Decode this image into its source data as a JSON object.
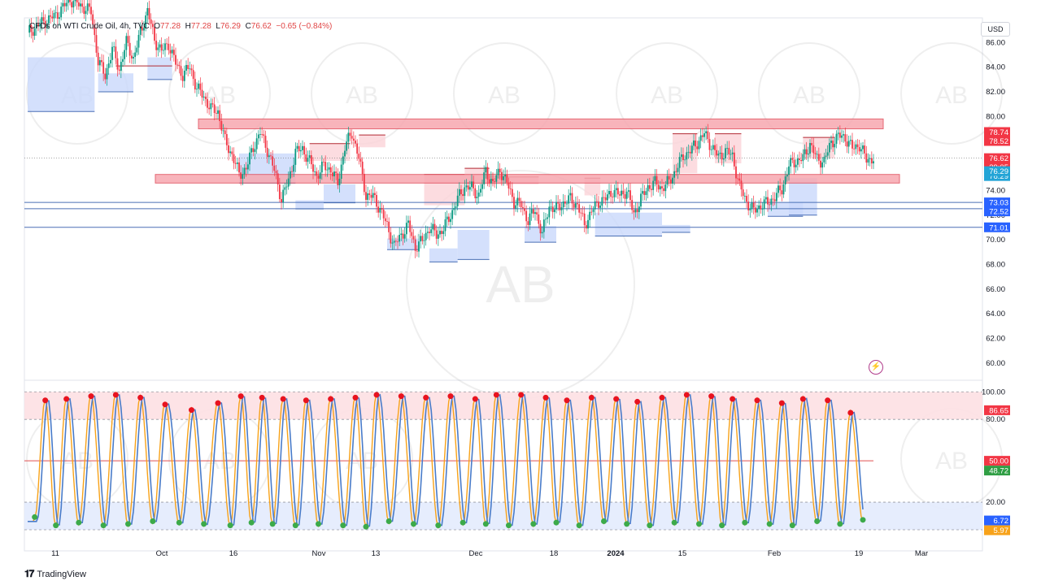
{
  "header": {
    "symbol": "CFDs on WTI Crude Oil, 4h, TVC",
    "o_label": "O",
    "o": "77.28",
    "h_label": "H",
    "h": "77.28",
    "l_label": "L",
    "l": "76.29",
    "c_label": "C",
    "c": "76.62",
    "change": "−0.65 (−0.84%)"
  },
  "currency": "USD",
  "brand": "TradingView",
  "watermark": "AB",
  "colors": {
    "up": "#089981",
    "down": "#f23645",
    "zone_red": "#f7a8b0",
    "zone_red_stroke": "#e0505e",
    "box_red": "#fbd3d8",
    "box_blue": "#c9d8fb",
    "line_blue": "#2962ff",
    "line_dark_blue": "#4a6fb5",
    "osc_fast": "#f7a21a",
    "osc_slow": "#4a7cc9",
    "dot_red": "#e8131f",
    "dot_green": "#3caa4a"
  },
  "chart_data": [
    {
      "type": "candlestick",
      "title": "CFDs on WTI Crude Oil, 4h, TVC",
      "y_ticks": [
        86.0,
        84.0,
        82.0,
        80.0,
        78.0,
        76.0,
        74.0,
        72.0,
        70.0,
        68.0,
        66.0,
        64.0,
        62.0,
        60.0
      ],
      "ylim": [
        59.0,
        88.0
      ],
      "x_ticks": [
        "11",
        "Oct",
        "16",
        "Nov",
        "13",
        "Dec",
        "18",
        "2024",
        "15",
        "Feb",
        "19",
        "Mar"
      ],
      "bold_x_tick": "2024",
      "price_labels": [
        {
          "value": 78.74,
          "text": "78.74",
          "style": "red"
        },
        {
          "value": 78.52,
          "text": "78.52",
          "style": "red"
        },
        {
          "value": 76.62,
          "text": "76.62",
          "style": "red"
        },
        {
          "value": 76.62,
          "text": "39:05",
          "style": "red",
          "offset": 1
        },
        {
          "value": 76.29,
          "text": "76.29",
          "style": "cyan"
        },
        {
          "value": 76.29,
          "text": "76.29",
          "style": "cyan",
          "offset": 1
        },
        {
          "value": 73.03,
          "text": "73.03",
          "style": "blue"
        },
        {
          "value": 72.52,
          "text": "72.52",
          "style": "blue"
        },
        {
          "value": 71.01,
          "text": "71.01",
          "style": "blue"
        }
      ],
      "resistance_zones": [
        {
          "top": 79.8,
          "bottom": 79.0
        },
        {
          "top": 75.3,
          "bottom": 74.6
        }
      ],
      "horizontal_lines": [
        73.03,
        72.52,
        71.01
      ],
      "last_price": 76.62,
      "price_path": [
        [
          0,
          86.8
        ],
        [
          8,
          87.6
        ],
        [
          16,
          88.2
        ],
        [
          24,
          89.5
        ],
        [
          30,
          89.0
        ],
        [
          36,
          88.5
        ],
        [
          40,
          84.5
        ],
        [
          44,
          83.3
        ],
        [
          48,
          85.5
        ],
        [
          52,
          83.8
        ],
        [
          56,
          86.0
        ],
        [
          60,
          84.7
        ],
        [
          64,
          86.8
        ],
        [
          68,
          88.6
        ],
        [
          72,
          86.2
        ],
        [
          76,
          85.3
        ],
        [
          80,
          85.9
        ],
        [
          84,
          84.3
        ],
        [
          88,
          83.4
        ],
        [
          92,
          84.0
        ],
        [
          96,
          82.3
        ],
        [
          100,
          81.6
        ],
        [
          104,
          80.6
        ],
        [
          108,
          80.4
        ],
        [
          112,
          78.0
        ],
        [
          116,
          76.9
        ],
        [
          120,
          75.3
        ],
        [
          124,
          75.8
        ],
        [
          128,
          77.5
        ],
        [
          132,
          78.7
        ],
        [
          136,
          77.3
        ],
        [
          140,
          75.6
        ],
        [
          144,
          73.3
        ],
        [
          148,
          74.8
        ],
        [
          152,
          77.1
        ],
        [
          156,
          77.4
        ],
        [
          160,
          76.3
        ],
        [
          164,
          75.2
        ],
        [
          168,
          76.0
        ],
        [
          172,
          75.7
        ],
        [
          176,
          74.6
        ],
        [
          180,
          77.5
        ],
        [
          184,
          78.7
        ],
        [
          188,
          76.6
        ],
        [
          192,
          73.6
        ],
        [
          196,
          73.5
        ],
        [
          200,
          72.5
        ],
        [
          204,
          71.1
        ],
        [
          208,
          69.5
        ],
        [
          212,
          70.4
        ],
        [
          216,
          71.2
        ],
        [
          220,
          69.4
        ],
        [
          224,
          69.9
        ],
        [
          228,
          71.0
        ],
        [
          232,
          70.4
        ],
        [
          236,
          70.9
        ],
        [
          240,
          72.0
        ],
        [
          244,
          73.3
        ],
        [
          248,
          74.3
        ],
        [
          252,
          74.2
        ],
        [
          256,
          73.6
        ],
        [
          260,
          75.6
        ],
        [
          264,
          74.5
        ],
        [
          268,
          75.7
        ],
        [
          272,
          74.6
        ],
        [
          276,
          73.1
        ],
        [
          280,
          72.8
        ],
        [
          284,
          71.6
        ],
        [
          288,
          72.4
        ],
        [
          292,
          70.5
        ],
        [
          296,
          72.7
        ],
        [
          300,
          72.5
        ],
        [
          304,
          73.0
        ],
        [
          308,
          73.3
        ],
        [
          312,
          72.8
        ],
        [
          316,
          71.2
        ],
        [
          320,
          72.3
        ],
        [
          324,
          73.1
        ],
        [
          328,
          73.3
        ],
        [
          332,
          74.0
        ],
        [
          336,
          73.6
        ],
        [
          340,
          74.0
        ],
        [
          344,
          72.1
        ],
        [
          348,
          73.3
        ],
        [
          352,
          74.3
        ],
        [
          356,
          74.6
        ],
        [
          360,
          74.2
        ],
        [
          364,
          74.7
        ],
        [
          368,
          75.7
        ],
        [
          372,
          76.8
        ],
        [
          376,
          77.2
        ],
        [
          380,
          77.9
        ],
        [
          384,
          78.6
        ],
        [
          388,
          77.6
        ],
        [
          392,
          76.7
        ],
        [
          396,
          77.2
        ],
        [
          400,
          76.8
        ],
        [
          404,
          74.3
        ],
        [
          408,
          73.1
        ],
        [
          412,
          72.3
        ],
        [
          416,
          72.8
        ],
        [
          420,
          73.0
        ],
        [
          424,
          73.5
        ],
        [
          428,
          74.1
        ],
        [
          432,
          76.0
        ],
        [
          436,
          76.4
        ],
        [
          440,
          76.6
        ],
        [
          444,
          77.8
        ],
        [
          448,
          76.5
        ],
        [
          452,
          76.4
        ],
        [
          456,
          77.9
        ],
        [
          460,
          78.4
        ],
        [
          464,
          78.3
        ],
        [
          468,
          77.4
        ],
        [
          472,
          77.7
        ],
        [
          476,
          76.5
        ],
        [
          480,
          76.62
        ]
      ],
      "red_boxes": [
        [
          82,
          50,
          84.1,
          83.0
        ],
        [
          160,
          183,
          77.8,
          76.4
        ],
        [
          188,
          203,
          78.5,
          77.5
        ],
        [
          225,
          248,
          75.3,
          72.8
        ],
        [
          248,
          262,
          75.8,
          74.5
        ],
        [
          262,
          290,
          75.1,
          74.5
        ],
        [
          316,
          325,
          75.0,
          73.6
        ],
        [
          366,
          380,
          78.6,
          75.4
        ],
        [
          390,
          405,
          78.6,
          76.2
        ],
        [
          440,
          458,
          78.3,
          76.6
        ]
      ],
      "blue_boxes": [
        [
          0,
          38,
          84.8,
          80.4
        ],
        [
          40,
          60,
          83.5,
          82.0
        ],
        [
          68,
          82,
          84.8,
          83.0
        ],
        [
          120,
          152,
          77.0,
          74.6
        ],
        [
          152,
          168,
          73.2,
          72.5
        ],
        [
          168,
          186,
          74.5,
          73.0
        ],
        [
          204,
          222,
          70.1,
          69.2
        ],
        [
          228,
          244,
          69.3,
          68.2
        ],
        [
          244,
          262,
          70.8,
          68.4
        ],
        [
          282,
          300,
          71.1,
          69.8
        ],
        [
          322,
          360,
          72.2,
          70.3
        ],
        [
          360,
          376,
          71.2,
          70.6
        ],
        [
          420,
          440,
          73.0,
          71.9
        ],
        [
          432,
          448,
          75.0,
          72.0
        ]
      ]
    },
    {
      "type": "line",
      "title": "Stochastic RSI",
      "y_ticks": [
        100.0,
        80.0,
        50.0,
        20.0,
        0.0
      ],
      "ylim": [
        0,
        100
      ],
      "overbought": 80,
      "oversold": 20,
      "midline": 50,
      "series": [
        {
          "name": "",
          "color": "#f7a21a"
        },
        {
          "name": "",
          "color": "#4a7cc9"
        }
      ],
      "value_labels": [
        {
          "value": 86.65,
          "text": "86.65",
          "style": "red"
        },
        {
          "value": 50.0,
          "text": "50.00",
          "style": "red"
        },
        {
          "value": 48.72,
          "text": "48.72",
          "style": "green"
        },
        {
          "value": 6.72,
          "text": "6.72",
          "style": "blue"
        },
        {
          "value": 5.97,
          "text": "5.97",
          "style": "orange"
        }
      ],
      "cycle_peaks": [
        [
          10,
          95
        ],
        [
          22,
          96
        ],
        [
          36,
          98
        ],
        [
          50,
          99
        ],
        [
          64,
          97
        ],
        [
          78,
          92
        ],
        [
          93,
          88
        ],
        [
          108,
          93
        ],
        [
          121,
          98
        ],
        [
          133,
          97
        ],
        [
          145,
          96
        ],
        [
          158,
          95
        ],
        [
          172,
          96
        ],
        [
          186,
          97
        ],
        [
          198,
          99
        ],
        [
          212,
          98
        ],
        [
          226,
          97
        ],
        [
          240,
          98
        ],
        [
          254,
          96
        ],
        [
          266,
          99
        ],
        [
          280,
          99
        ],
        [
          294,
          97
        ],
        [
          306,
          95
        ],
        [
          320,
          97
        ],
        [
          334,
          96
        ],
        [
          346,
          94
        ],
        [
          360,
          97
        ],
        [
          374,
          99
        ],
        [
          388,
          98
        ],
        [
          400,
          96
        ],
        [
          414,
          95
        ],
        [
          428,
          93
        ],
        [
          440,
          96
        ],
        [
          454,
          95
        ],
        [
          467,
          86
        ]
      ],
      "cycle_troughs": [
        [
          4,
          8
        ],
        [
          16,
          2
        ],
        [
          29,
          4
        ],
        [
          43,
          2
        ],
        [
          57,
          3
        ],
        [
          71,
          5
        ],
        [
          86,
          4
        ],
        [
          100,
          3
        ],
        [
          115,
          2
        ],
        [
          127,
          4
        ],
        [
          139,
          3
        ],
        [
          152,
          2
        ],
        [
          165,
          3
        ],
        [
          179,
          2
        ],
        [
          192,
          1
        ],
        [
          205,
          5
        ],
        [
          219,
          3
        ],
        [
          233,
          2
        ],
        [
          247,
          4
        ],
        [
          260,
          3
        ],
        [
          273,
          2
        ],
        [
          287,
          3
        ],
        [
          300,
          4
        ],
        [
          313,
          2
        ],
        [
          327,
          5
        ],
        [
          340,
          3
        ],
        [
          353,
          2
        ],
        [
          367,
          4
        ],
        [
          381,
          3
        ],
        [
          394,
          2
        ],
        [
          407,
          4
        ],
        [
          421,
          3
        ],
        [
          434,
          2
        ],
        [
          448,
          5
        ],
        [
          461,
          3
        ],
        [
          474,
          6
        ]
      ],
      "last_fast": 6.72,
      "last_slow": 5.97
    }
  ]
}
